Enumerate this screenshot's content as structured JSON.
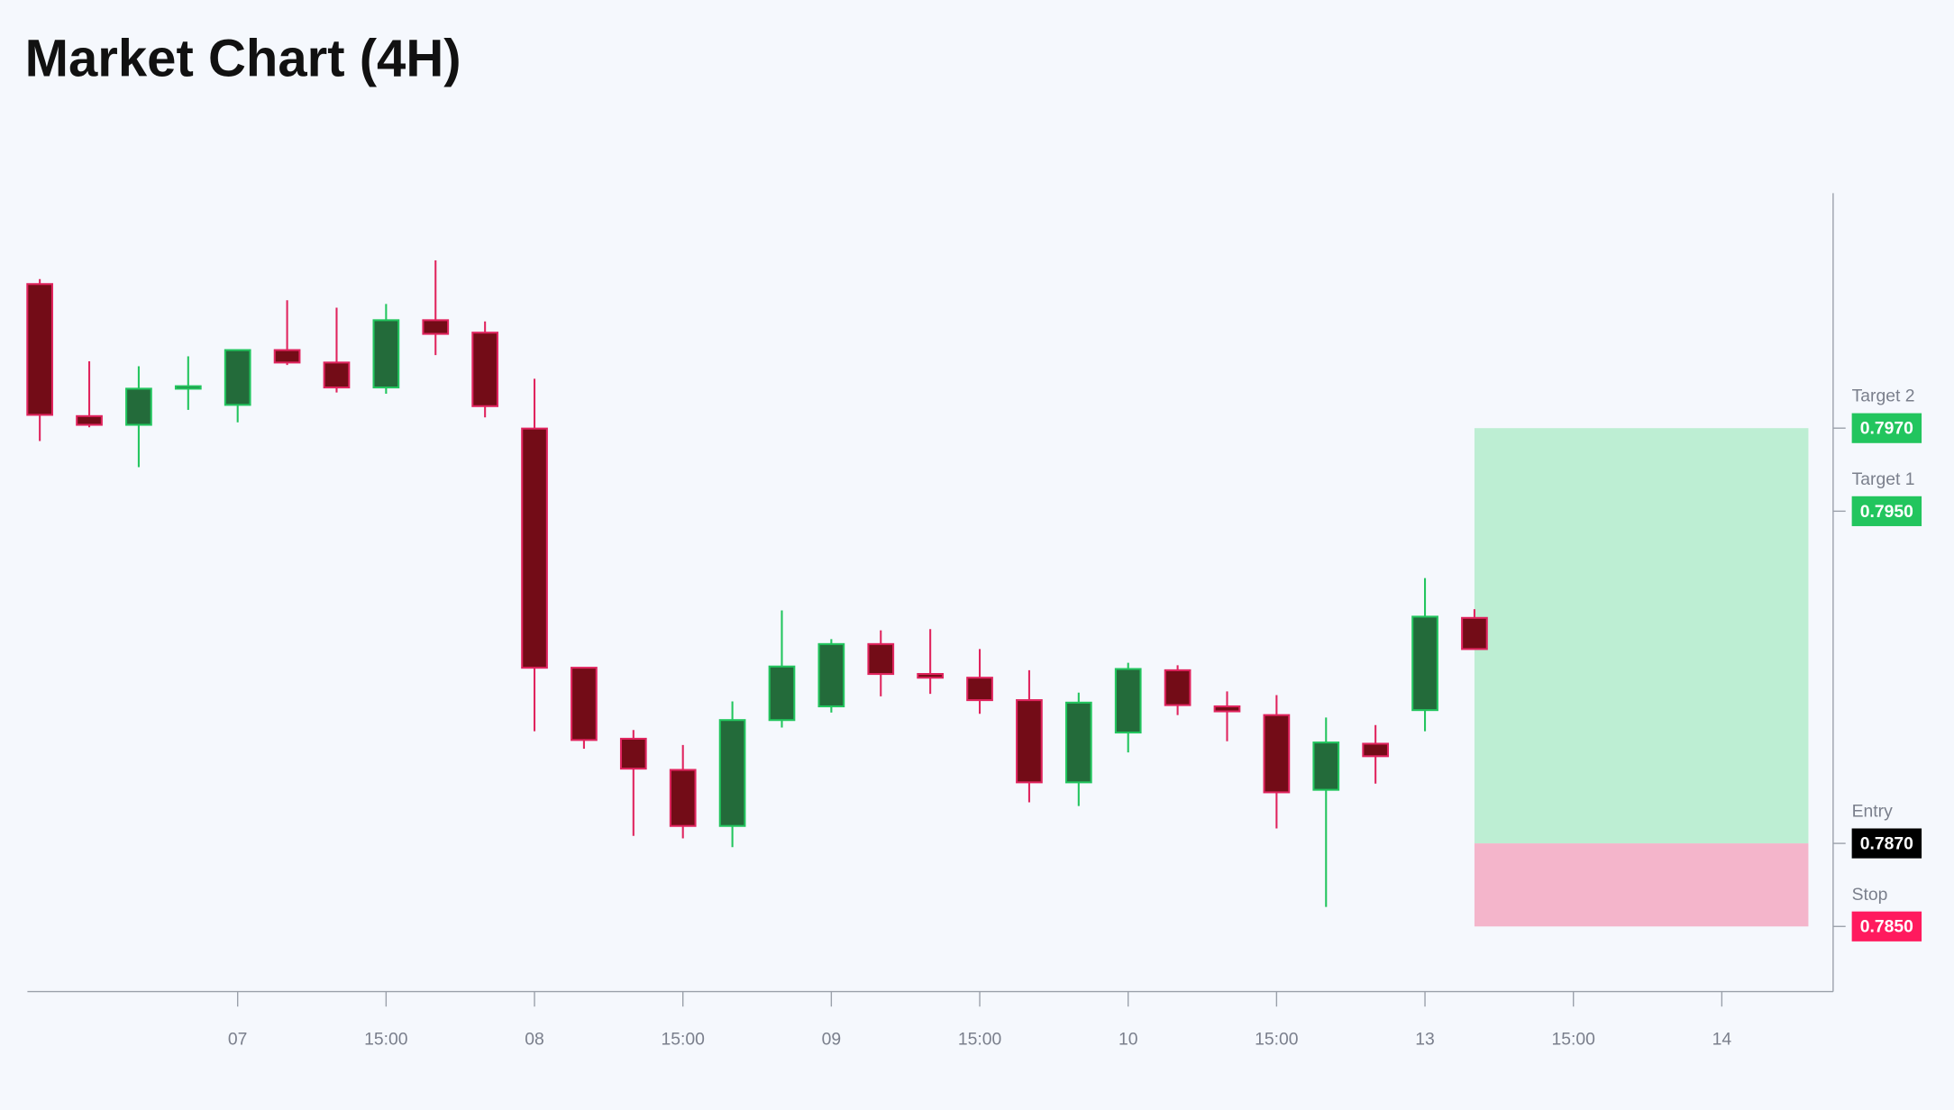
{
  "chart_data": {
    "type": "candlestick",
    "title": "Market Chart (4H)",
    "open": [
      0.80047,
      0.79729,
      0.79708,
      0.79795,
      0.79756,
      0.79888,
      0.79858,
      0.79798,
      0.7996,
      0.7993,
      0.79699,
      0.79123,
      0.78952,
      0.78877,
      0.78742,
      0.78997,
      0.7903,
      0.7918,
      0.79108,
      0.79099,
      0.79045,
      0.78847,
      0.78967,
      0.79117,
      0.7903,
      0.79009,
      0.78829,
      0.7894,
      0.79021,
      0.79243
    ],
    "high": [
      0.80059,
      0.79861,
      0.79849,
      0.79873,
      0.79888,
      0.80008,
      0.7999,
      0.79999,
      0.80104,
      0.79957,
      0.79819,
      0.79123,
      0.78973,
      0.78937,
      0.79042,
      0.79261,
      0.79192,
      0.79213,
      0.79216,
      0.79168,
      0.79117,
      0.79063,
      0.79135,
      0.79129,
      0.79066,
      0.79057,
      0.79003,
      0.78985,
      0.79339,
      0.79264
    ],
    "low": [
      0.79669,
      0.79702,
      0.79606,
      0.79744,
      0.79714,
      0.79852,
      0.79786,
      0.79783,
      0.79876,
      0.79726,
      0.7897,
      0.78928,
      0.78718,
      0.78712,
      0.78691,
      0.78979,
      0.79015,
      0.79054,
      0.7906,
      0.79012,
      0.78799,
      0.7879,
      0.78919,
      0.79009,
      0.78946,
      0.78736,
      0.78547,
      0.78844,
      0.7897,
      0.79168
    ],
    "close": [
      0.79732,
      0.79708,
      0.79795,
      0.79801,
      0.79888,
      0.79858,
      0.79798,
      0.7996,
      0.79927,
      0.79753,
      0.79123,
      0.78949,
      0.7888,
      0.78742,
      0.78997,
      0.79126,
      0.7918,
      0.79108,
      0.79099,
      0.79045,
      0.78847,
      0.79039,
      0.7912,
      0.79033,
      0.79018,
      0.78823,
      0.78943,
      0.7891,
      0.79246,
      0.79168
    ],
    "up_color": "#22c55e",
    "up_fill": "#236b3a",
    "down_color": "#e0245e",
    "down_fill": "#730c17",
    "xlim": [
      -0.25,
      36.25
    ],
    "xticks": [
      {
        "value": 4,
        "label": "07"
      },
      {
        "value": 7,
        "label": "15:00"
      },
      {
        "value": 10,
        "label": "08"
      },
      {
        "value": 13,
        "label": "15:00"
      },
      {
        "value": 16,
        "label": "09"
      },
      {
        "value": 19,
        "label": "15:00"
      },
      {
        "value": 22,
        "label": "10"
      },
      {
        "value": 25,
        "label": "15:00"
      },
      {
        "value": 28,
        "label": "13"
      },
      {
        "value": 31,
        "label": "15:00"
      },
      {
        "value": 34,
        "label": "14"
      }
    ],
    "ylim": [
      0.78343,
      0.80266
    ],
    "levels": [
      {
        "name": "Target 2",
        "value": 0.797,
        "label": "0.7970",
        "color": "#22c55e"
      },
      {
        "name": "Target 1",
        "value": 0.795,
        "label": "0.7950",
        "color": "#22c55e"
      },
      {
        "name": "Entry",
        "value": 0.787,
        "label": "0.7870",
        "color": "#000000"
      },
      {
        "name": "Stop",
        "value": 0.785,
        "label": "0.7850",
        "color": "#ff1a5e"
      }
    ],
    "position": {
      "start": 29,
      "end": 35.75,
      "profit_color": "#bdeed3",
      "loss_color": "#f4b5cb"
    }
  }
}
